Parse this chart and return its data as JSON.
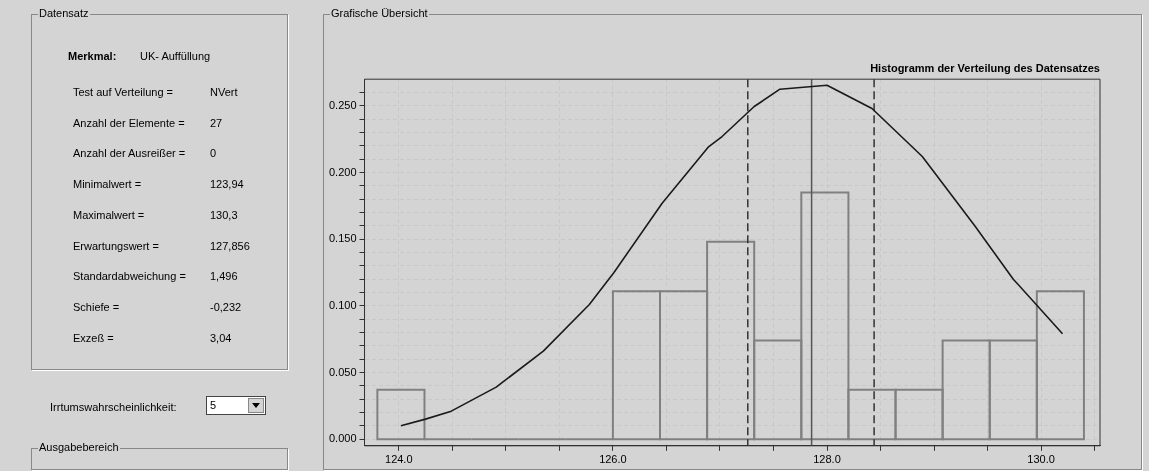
{
  "chart_data": {
    "type": "histogram",
    "title": "Histogramm der Verteilung des Datensatzes",
    "bins": [
      123.8,
      124.24,
      124.68,
      125.12,
      125.56,
      126.0,
      126.44,
      126.88,
      127.32,
      127.76,
      128.2,
      128.64,
      129.08,
      129.52,
      129.96,
      130.4
    ],
    "values": [
      0.037,
      0,
      0,
      0,
      0,
      0.111,
      0.111,
      0.148,
      0.074,
      0.185,
      0.037,
      0.037,
      0.074,
      0.074,
      0.111
    ],
    "color": "#808080",
    "series": [
      {
        "type": "line",
        "color": "#1a1a1a",
        "x": [
          124.02,
          124.25,
          124.49,
          124.91,
          125.35,
          125.78,
          126.01,
          126.46,
          126.89,
          127.02,
          127.32,
          127.56,
          128.0,
          128.42,
          128.89,
          129.38,
          129.74,
          130.2
        ],
        "values": [
          0.01,
          0.015,
          0.021,
          0.039,
          0.066,
          0.101,
          0.125,
          0.177,
          0.219,
          0.227,
          0.2495,
          0.2625,
          0.2655,
          0.248,
          0.212,
          0.16,
          0.12,
          0.079
        ]
      }
    ],
    "ref_lines": [
      {
        "axis": "x",
        "value": 127.26,
        "color": "#333333",
        "line_style": "dashed"
      },
      {
        "axis": "x",
        "value": 127.856,
        "color": "#555555",
        "line_style": "solid"
      },
      {
        "axis": "x",
        "value": 128.44,
        "color": "#333333",
        "line_style": "dashed"
      }
    ],
    "xlim": [
      123.68,
      130.55
    ],
    "xticks": [
      {
        "value": 124,
        "label": "124.0"
      },
      {
        "value": 124.5,
        "label": null
      },
      {
        "value": 125,
        "label": null
      },
      {
        "value": 125.5,
        "label": null
      },
      {
        "value": 126,
        "label": "126.0"
      },
      {
        "value": 126.5,
        "label": null
      },
      {
        "value": 127,
        "label": null
      },
      {
        "value": 127.5,
        "label": null
      },
      {
        "value": 128,
        "label": "128.0"
      },
      {
        "value": 128.5,
        "label": null
      },
      {
        "value": 129,
        "label": null
      },
      {
        "value": 129.5,
        "label": null
      },
      {
        "value": 130,
        "label": "130.0"
      },
      {
        "value": 130.5,
        "label": null
      }
    ],
    "ylim": [
      -0.005,
      0.27
    ],
    "yticks": [
      {
        "value": 0,
        "label": "0.000"
      },
      {
        "value": 0.01,
        "label": null
      },
      {
        "value": 0.02,
        "label": null
      },
      {
        "value": 0.03,
        "label": null
      },
      {
        "value": 0.04,
        "label": null
      },
      {
        "value": 0.05,
        "label": "0.050"
      },
      {
        "value": 0.06,
        "label": null
      },
      {
        "value": 0.07,
        "label": null
      },
      {
        "value": 0.08,
        "label": null
      },
      {
        "value": 0.09,
        "label": null
      },
      {
        "value": 0.1,
        "label": "0.100"
      },
      {
        "value": 0.11,
        "label": null
      },
      {
        "value": 0.12,
        "label": null
      },
      {
        "value": 0.13,
        "label": null
      },
      {
        "value": 0.14,
        "label": null
      },
      {
        "value": 0.15,
        "label": "0.150"
      },
      {
        "value": 0.16,
        "label": null
      },
      {
        "value": 0.17,
        "label": null
      },
      {
        "value": 0.18,
        "label": null
      },
      {
        "value": 0.19,
        "label": null
      },
      {
        "value": 0.2,
        "label": "0.200"
      },
      {
        "value": 0.21,
        "label": null
      },
      {
        "value": 0.22,
        "label": null
      },
      {
        "value": 0.23,
        "label": null
      },
      {
        "value": 0.24,
        "label": null
      },
      {
        "value": 0.25,
        "label": "0.250"
      },
      {
        "value": 0.26,
        "label": null
      }
    ],
    "grid": true,
    "legend": false,
    "marker": "none",
    "annotations": [
      "Datensatz",
      "Merkmal:",
      "UK- Auffüllung",
      "Test auf Verteilung =",
      "NVert",
      "Anzahl der Elemente =",
      "27",
      "Anzahl der Ausreißer =",
      "0",
      "Minimalwert =",
      "123,94",
      "Maximalwert =",
      "130,3",
      "Erwartungswert =",
      "127,856",
      "Standardabweichung =",
      "1,496",
      "Schiefe =",
      "-0,232",
      "Exzeß =",
      "3,04",
      "Irrtumswahrscheinlichkeit:",
      "5",
      "Ausgabebereich",
      "Grafische Übersicht"
    ]
  }
}
